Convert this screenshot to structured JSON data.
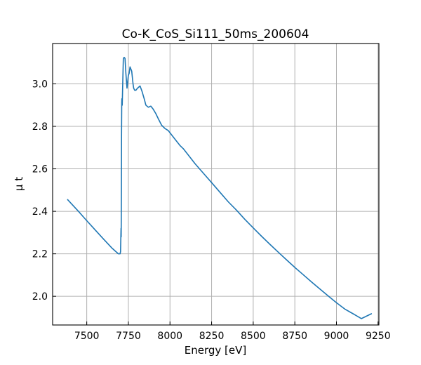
{
  "chart_data": {
    "type": "line",
    "title": "Co-K_CoS_Si111_50ms_200604",
    "xlabel": "Energy [eV]",
    "ylabel": "μ t",
    "xlim": [
      7295,
      9255
    ],
    "ylim": [
      1.865,
      3.19
    ],
    "grid": true,
    "x_ticks": [
      7500,
      7750,
      8000,
      8250,
      8500,
      8750,
      9000,
      9250
    ],
    "y_ticks": [
      2.0,
      2.2,
      2.4,
      2.6,
      2.8,
      3.0
    ],
    "x_tick_labels": [
      "7500",
      "7750",
      "8000",
      "8250",
      "8500",
      "8750",
      "9000",
      "9250"
    ],
    "y_tick_labels": [
      "2.0",
      "2.2",
      "2.4",
      "2.6",
      "2.8",
      "3.0"
    ],
    "series": [
      {
        "color": "#1f77b4",
        "x": [
          7385,
          7450,
          7500,
          7550,
          7600,
          7650,
          7690,
          7700,
          7703,
          7705,
          7706,
          7707,
          7708,
          7709,
          7710,
          7711,
          7713,
          7716,
          7720,
          7725,
          7730,
          7735,
          7742,
          7750,
          7755,
          7760,
          7770,
          7778,
          7782,
          7788,
          7795,
          7805,
          7820,
          7832,
          7845,
          7855,
          7870,
          7885,
          7900,
          7915,
          7930,
          7950,
          7970,
          7990,
          8005,
          8020,
          8040,
          8060,
          8080,
          8100,
          8120,
          8150,
          8200,
          8250,
          8300,
          8350,
          8400,
          8450,
          8500,
          8550,
          8600,
          8650,
          8700,
          8750,
          8800,
          8850,
          8900,
          8950,
          9000,
          9050,
          9100,
          9150,
          9210
        ],
        "y": [
          2.455,
          2.4,
          2.356,
          2.313,
          2.27,
          2.228,
          2.2,
          2.2,
          2.21,
          2.29,
          2.32,
          2.28,
          2.5,
          2.75,
          2.91,
          2.93,
          2.9,
          3.0,
          3.12,
          3.125,
          3.12,
          3.05,
          2.98,
          3.04,
          3.05,
          3.08,
          3.06,
          3.0,
          2.98,
          2.97,
          2.97,
          2.98,
          2.99,
          2.965,
          2.93,
          2.9,
          2.89,
          2.895,
          2.88,
          2.86,
          2.835,
          2.805,
          2.79,
          2.78,
          2.765,
          2.75,
          2.73,
          2.71,
          2.695,
          2.675,
          2.655,
          2.625,
          2.58,
          2.535,
          2.49,
          2.445,
          2.405,
          2.362,
          2.322,
          2.283,
          2.245,
          2.208,
          2.172,
          2.136,
          2.102,
          2.068,
          2.035,
          2.002,
          1.97,
          1.94,
          1.918,
          1.895,
          1.918
        ]
      }
    ]
  }
}
